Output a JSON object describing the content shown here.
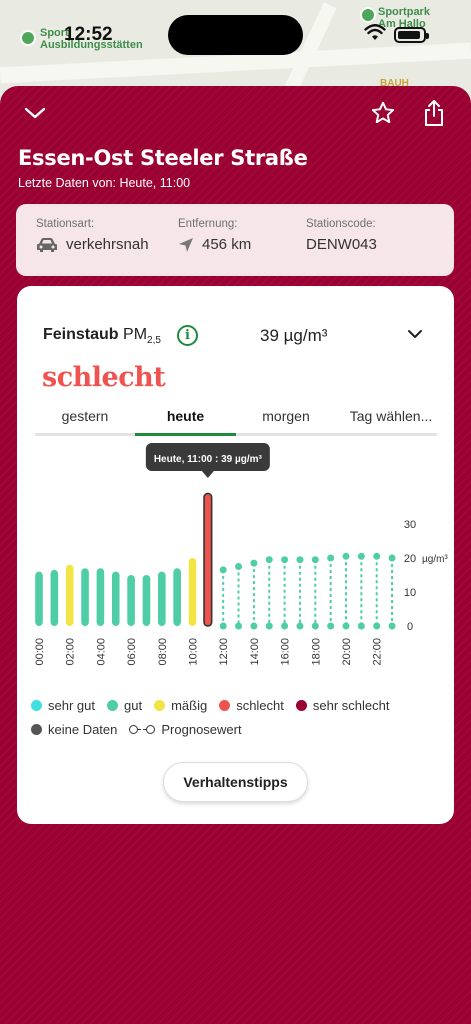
{
  "status_bar": {
    "time": "12:52"
  },
  "map": {
    "labels": [
      {
        "text_line1": "Sport",
        "text_line2": "Ausbildungsstätten"
      },
      {
        "text_line1": "Sportpark",
        "text_line2": "Am Hallo"
      }
    ],
    "poi": "BAUH"
  },
  "header": {
    "title": "Essen-Ost Steeler Straße",
    "subtitle": "Letzte Daten von: Heute, 11:00"
  },
  "station": {
    "type_label": "Stationsart:",
    "type_value": "verkehrsnah",
    "distance_label": "Entfernung:",
    "distance_value": "456 km",
    "code_label": "Stationscode:",
    "code_value": "DENW043"
  },
  "pollutant": {
    "name": "Feinstaub",
    "symbol": "PM",
    "symbol_sub": "2,5",
    "concentration": "39 µg/m³",
    "rating": "schlecht"
  },
  "tabs": [
    {
      "label": "gestern"
    },
    {
      "label": "heute"
    },
    {
      "label": "morgen"
    },
    {
      "label": "Tag wählen..."
    }
  ],
  "chart_data": {
    "type": "bar",
    "tooltip": "Heute, 11:00 : 39 µg/m³",
    "y_axis_ticks": [
      0,
      10,
      20,
      30
    ],
    "y_unit": "µg/m³",
    "x_tick_labels": [
      "00:00",
      "02:00",
      "04:00",
      "06:00",
      "08:00",
      "10:00",
      "12:00",
      "14:00",
      "16:00",
      "18:00",
      "20:00",
      "22:00"
    ],
    "ylim": [
      0,
      30
    ],
    "colors": {
      "gut": "#4ecda6",
      "maessig": "#f2e445",
      "schlecht": "#ef5350"
    },
    "measured": [
      {
        "hour": 0,
        "value": 16,
        "class": "gut"
      },
      {
        "hour": 1,
        "value": 16.5,
        "class": "gut"
      },
      {
        "hour": 2,
        "value": 18,
        "class": "maessig"
      },
      {
        "hour": 3,
        "value": 17,
        "class": "gut"
      },
      {
        "hour": 4,
        "value": 17,
        "class": "gut"
      },
      {
        "hour": 5,
        "value": 16,
        "class": "gut"
      },
      {
        "hour": 6,
        "value": 15,
        "class": "gut"
      },
      {
        "hour": 7,
        "value": 15,
        "class": "gut"
      },
      {
        "hour": 8,
        "value": 16,
        "class": "gut"
      },
      {
        "hour": 9,
        "value": 17,
        "class": "gut"
      },
      {
        "hour": 10,
        "value": 20,
        "class": "maessig"
      },
      {
        "hour": 11,
        "value": 39,
        "class": "schlecht"
      }
    ],
    "forecast": [
      {
        "hour": 12,
        "value": 16.5,
        "class": "gut"
      },
      {
        "hour": 13,
        "value": 17.5,
        "class": "gut"
      },
      {
        "hour": 14,
        "value": 18.5,
        "class": "gut"
      },
      {
        "hour": 15,
        "value": 19.5,
        "class": "gut"
      },
      {
        "hour": 16,
        "value": 19.5,
        "class": "gut"
      },
      {
        "hour": 17,
        "value": 19.5,
        "class": "gut"
      },
      {
        "hour": 18,
        "value": 19.5,
        "class": "gut"
      },
      {
        "hour": 19,
        "value": 20,
        "class": "gut"
      },
      {
        "hour": 20,
        "value": 20.5,
        "class": "gut"
      },
      {
        "hour": 21,
        "value": 20.5,
        "class": "gut"
      },
      {
        "hour": 22,
        "value": 20.5,
        "class": "gut"
      },
      {
        "hour": 23,
        "value": 20,
        "class": "gut"
      }
    ]
  },
  "legend": [
    {
      "label": "sehr gut",
      "color": "#3fe0e0"
    },
    {
      "label": "gut",
      "color": "#4ecda6"
    },
    {
      "label": "mäßig",
      "color": "#f2e445"
    },
    {
      "label": "schlecht",
      "color": "#ef5350"
    },
    {
      "label": "sehr schlecht",
      "color": "#9a0032"
    },
    {
      "label": "keine Daten",
      "color": "#555555"
    },
    {
      "label": "Prognosewert"
    }
  ],
  "tips_button": "Verhaltenstipps"
}
